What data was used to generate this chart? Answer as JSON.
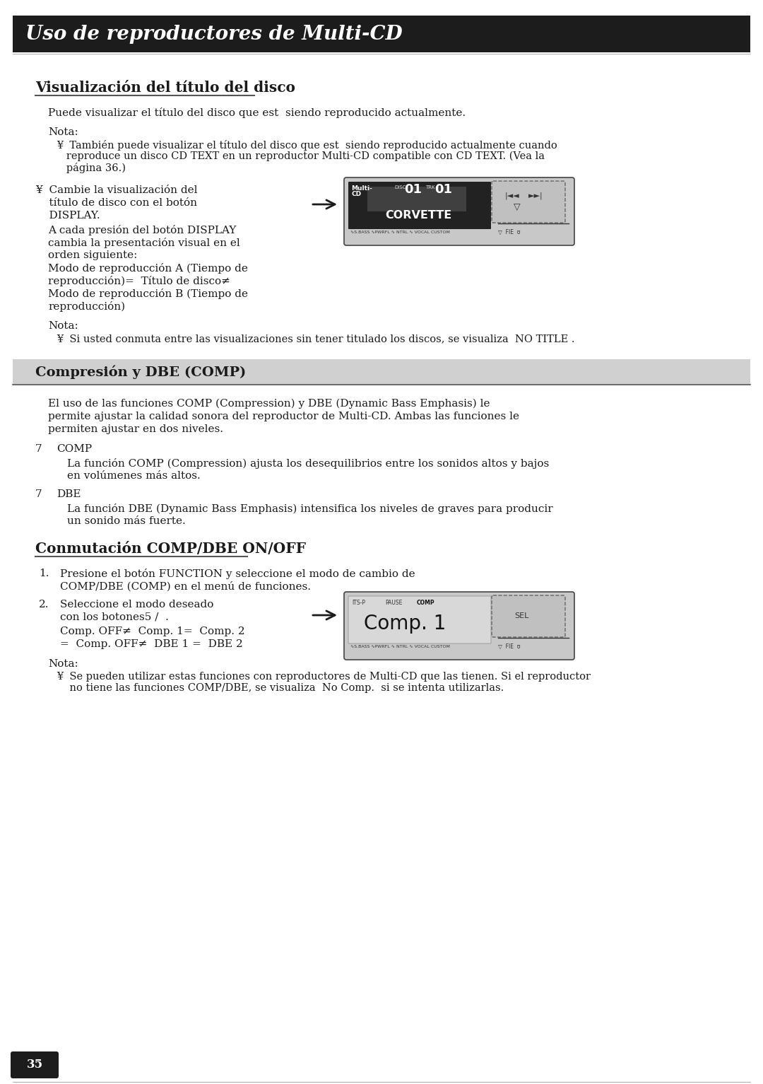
{
  "title": "Uso de reproductores de Multi-CD",
  "title_bg": "#1c1c1c",
  "title_color": "#ffffff",
  "page_bg": "#ffffff",
  "page_number": "35",
  "section1_heading": "Visualización del título del disco",
  "section1_intro": "Puede visualizar el título del disco que est  siendo reproducido actualmente.",
  "section1_nota_label": "Nota:",
  "section1_nota_line1": "¥  También puede visualizar el título del disco que est  siendo reproducido actualmente cuando",
  "section1_nota_line2": "   reproduce un disco CD TEXT en un reproductor Multi-CD compatible con CD TEXT. (Vea la",
  "section1_nota_line3": "   página 36.)",
  "section1_bullet_line1": "¥  Cambie la visualización del",
  "section1_bullet_line2": "    título de disco con el botón",
  "section1_bullet_line3": "    DISPLAY.",
  "section1_sub_line1": "A cada presión del botón DISPLAY",
  "section1_sub_line2": "cambia la presentación visual en el",
  "section1_sub_line3": "orden siguiente:",
  "section1_sub_line4": "Modo de reproducción A (Tiempo de",
  "section1_sub_line5": "reproducción)=  Título de disco≠",
  "section1_sub_line6": "Modo de reproducción B (Tiempo de",
  "section1_sub_line7": "reproducción)",
  "section1_nota2_label": "Nota:",
  "section1_nota2_text": "¥  Si usted conmuta entre las visualizaciones sin tener titulado los discos, se visualiza  NO TITLE .",
  "section2_heading": "Compresión y DBE (COMP)",
  "section2_heading_bg": "#d0d0d0",
  "section2_intro_line1": "El uso de las funciones COMP (Compression) y DBE (Dynamic Bass Emphasis) le",
  "section2_intro_line2": "permite ajustar la calidad sonora del reproductor de Multi-CD. Ambas las funciones le",
  "section2_intro_line3": "permiten ajustar en dos niveles.",
  "section2_comp_num": "7",
  "section2_comp_label": "COMP",
  "section2_comp_line1": "La función COMP (Compression) ajusta los desequilibrios entre los sonidos altos y bajos",
  "section2_comp_line2": "en volúmenes más altos.",
  "section2_dbe_num": "7",
  "section2_dbe_label": "DBE",
  "section2_dbe_line1": "La función DBE (Dynamic Bass Emphasis) intensifica los niveles de graves para producir",
  "section2_dbe_line2": "un sonido más fuerte.",
  "section3_heading": "Conmutación COMP/DBE ON/OFF",
  "section3_step1_num": "1.",
  "section3_step1_line1": "Presione el botón FUNCTION y seleccione el modo de cambio de",
  "section3_step1_line2": "COMP/DBE (COMP) en el menú de funciones.",
  "section3_step2_num": "2.",
  "section3_step2_line1": "Seleccione el modo deseado",
  "section3_step2_line2": "con los botones5 /  .",
  "section3_step2_sub_line1": "Comp. OFF≠  Comp. 1=  Comp. 2",
  "section3_step2_sub_line2": "=  Comp. OFF≠  DBE 1 =  DBE 2",
  "section3_nota_label": "Nota:",
  "section3_nota_line1": "¥  Se pueden utilizar estas funciones con reproductores de Multi-CD que las tienen. Si el reproductor",
  "section3_nota_line2": "    no tiene las funciones COMP/DBE, se visualiza  No Comp.  si se intenta utilizarlas.",
  "text_color": "#1a1a1a",
  "fs_body": 11.0,
  "fs_heading1": 14.5,
  "fs_heading2": 14.0,
  "fs_nota": 10.5,
  "fs_title": 20
}
